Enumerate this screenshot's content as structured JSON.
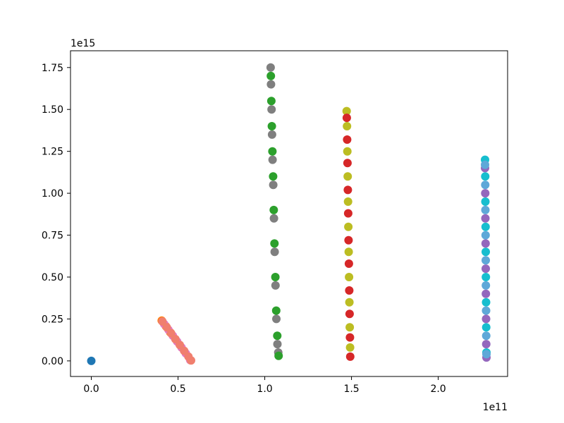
{
  "chart_data": {
    "type": "scatter",
    "title": "",
    "xlabel": "",
    "ylabel": "",
    "xlim": [
      -12000000000.0,
      240000000000.0
    ],
    "ylim": [
      -93000000000000.0,
      1850000000000000.0
    ],
    "x_offset_text": "1e11",
    "y_offset_text": "1e15",
    "xticks": [
      0,
      50000000000.0,
      100000000000.0,
      150000000000.0,
      200000000000.0
    ],
    "xtick_labels": [
      "0.0",
      "0.5",
      "1.0",
      "1.5",
      "2.0"
    ],
    "yticks": [
      0,
      250000000000000.0,
      500000000000000.0,
      750000000000000.0,
      1000000000000000.0,
      1250000000000000.0,
      1500000000000000.0,
      1750000000000000.0
    ],
    "ytick_labels": [
      "0.00",
      "0.25",
      "0.50",
      "0.75",
      "1.00",
      "1.25",
      "1.50",
      "1.75"
    ],
    "grid": false,
    "series": [
      {
        "color": "#1f77b4",
        "points": [
          [
            0,
            0
          ]
        ]
      },
      {
        "color": "#ff7f0e",
        "points": [
          [
            40600000000.0,
            240000000000000.0
          ],
          [
            43000000000.0,
            207000000000000.0
          ],
          [
            45500000000.0,
            170000000000000.0
          ]
        ]
      },
      {
        "color": "#e377c2",
        "points": [
          [
            42000000000.0,
            220000000000000.0
          ],
          [
            44500000000.0,
            185000000000000.0
          ],
          [
            47000000000.0,
            150000000000000.0
          ],
          [
            49500000000.0,
            115000000000000.0
          ],
          [
            52000000000.0,
            80000000000000.0
          ],
          [
            54500000000.0,
            45000000000000.0
          ],
          [
            57000000000.0,
            5000000000000.0
          ]
        ]
      },
      {
        "color": "#f07f6e",
        "points": [
          [
            41000000000.0,
            235000000000000.0
          ],
          [
            43500000000.0,
            200000000000000.0
          ],
          [
            46000000000.0,
            165000000000000.0
          ],
          [
            48500000000.0,
            130000000000000.0
          ],
          [
            51000000000.0,
            95000000000000.0
          ],
          [
            53500000000.0,
            60000000000000.0
          ],
          [
            56000000000.0,
            25000000000000.0
          ],
          [
            57500000000.0,
            3000000000000.0
          ]
        ]
      },
      {
        "color": "#7f7f7f",
        "points": [
          [
            103400000000.0,
            1750000000000000.0
          ],
          [
            103600000000.0,
            1650000000000000.0
          ],
          [
            103900000000.0,
            1500000000000000.0
          ],
          [
            104200000000.0,
            1350000000000000.0
          ],
          [
            104500000000.0,
            1200000000000000.0
          ],
          [
            104900000000.0,
            1050000000000000.0
          ],
          [
            105300000000.0,
            850000000000000.0
          ],
          [
            105700000000.0,
            650000000000000.0
          ],
          [
            106200000000.0,
            450000000000000.0
          ],
          [
            106700000000.0,
            250000000000000.0
          ],
          [
            107300000000.0,
            100000000000000.0
          ],
          [
            107800000000.0,
            50000000000000.0
          ]
        ]
      },
      {
        "color": "#2ca02c",
        "points": [
          [
            103500000000.0,
            1700000000000000.0
          ],
          [
            103800000000.0,
            1550000000000000.0
          ],
          [
            104100000000.0,
            1400000000000000.0
          ],
          [
            104400000000.0,
            1250000000000000.0
          ],
          [
            104800000000.0,
            1100000000000000.0
          ],
          [
            105200000000.0,
            900000000000000.0
          ],
          [
            105600000000.0,
            700000000000000.0
          ],
          [
            106100000000.0,
            500000000000000.0
          ],
          [
            106600000000.0,
            300000000000000.0
          ],
          [
            107200000000.0,
            150000000000000.0
          ],
          [
            108000000000.0,
            30000000000000.0
          ]
        ]
      },
      {
        "color": "#bcbd22",
        "points": [
          [
            147200000000.0,
            1490000000000000.0
          ],
          [
            147400000000.0,
            1400000000000000.0
          ],
          [
            147600000000.0,
            1250000000000000.0
          ],
          [
            147800000000.0,
            1100000000000000.0
          ],
          [
            148000000000.0,
            950000000000000.0
          ],
          [
            148200000000.0,
            800000000000000.0
          ],
          [
            148400000000.0,
            650000000000000.0
          ],
          [
            148600000000.0,
            500000000000000.0
          ],
          [
            148800000000.0,
            350000000000000.0
          ],
          [
            149000000000.0,
            200000000000000.0
          ],
          [
            149200000000.0,
            80000000000000.0
          ]
        ]
      },
      {
        "color": "#d62728",
        "points": [
          [
            147300000000.0,
            1450000000000000.0
          ],
          [
            147500000000.0,
            1320000000000000.0
          ],
          [
            147700000000.0,
            1180000000000000.0
          ],
          [
            147900000000.0,
            1020000000000000.0
          ],
          [
            148100000000.0,
            880000000000000.0
          ],
          [
            148300000000.0,
            720000000000000.0
          ],
          [
            148500000000.0,
            580000000000000.0
          ],
          [
            148700000000.0,
            420000000000000.0
          ],
          [
            148900000000.0,
            280000000000000.0
          ],
          [
            149100000000.0,
            140000000000000.0
          ],
          [
            149300000000.0,
            25000000000000.0
          ]
        ]
      },
      {
        "color": "#17becf",
        "points": [
          [
            227000000000.0,
            1200000000000000.0
          ],
          [
            227100000000.0,
            1100000000000000.0
          ],
          [
            227200000000.0,
            950000000000000.0
          ],
          [
            227300000000.0,
            800000000000000.0
          ],
          [
            227400000000.0,
            650000000000000.0
          ],
          [
            227500000000.0,
            500000000000000.0
          ],
          [
            227600000000.0,
            350000000000000.0
          ],
          [
            227700000000.0,
            200000000000000.0
          ],
          [
            227800000000.0,
            50000000000000.0
          ]
        ]
      },
      {
        "color": "#9467bd",
        "points": [
          [
            227000000000.0,
            1150000000000000.0
          ],
          [
            227100000000.0,
            1000000000000000.0
          ],
          [
            227200000000.0,
            850000000000000.0
          ],
          [
            227300000000.0,
            700000000000000.0
          ],
          [
            227400000000.0,
            550000000000000.0
          ],
          [
            227500000000.0,
            400000000000000.0
          ],
          [
            227600000000.0,
            250000000000000.0
          ],
          [
            227700000000.0,
            100000000000000.0
          ],
          [
            227800000000.0,
            20000000000000.0
          ]
        ]
      },
      {
        "color": "#5ea8d8",
        "points": [
          [
            227000000000.0,
            1170000000000000.0
          ],
          [
            227100000000.0,
            1050000000000000.0
          ],
          [
            227200000000.0,
            900000000000000.0
          ],
          [
            227300000000.0,
            750000000000000.0
          ],
          [
            227400000000.0,
            600000000000000.0
          ],
          [
            227500000000.0,
            450000000000000.0
          ],
          [
            227600000000.0,
            300000000000000.0
          ],
          [
            227700000000.0,
            150000000000000.0
          ],
          [
            227800000000.0,
            40000000000000.0
          ]
        ]
      }
    ]
  }
}
